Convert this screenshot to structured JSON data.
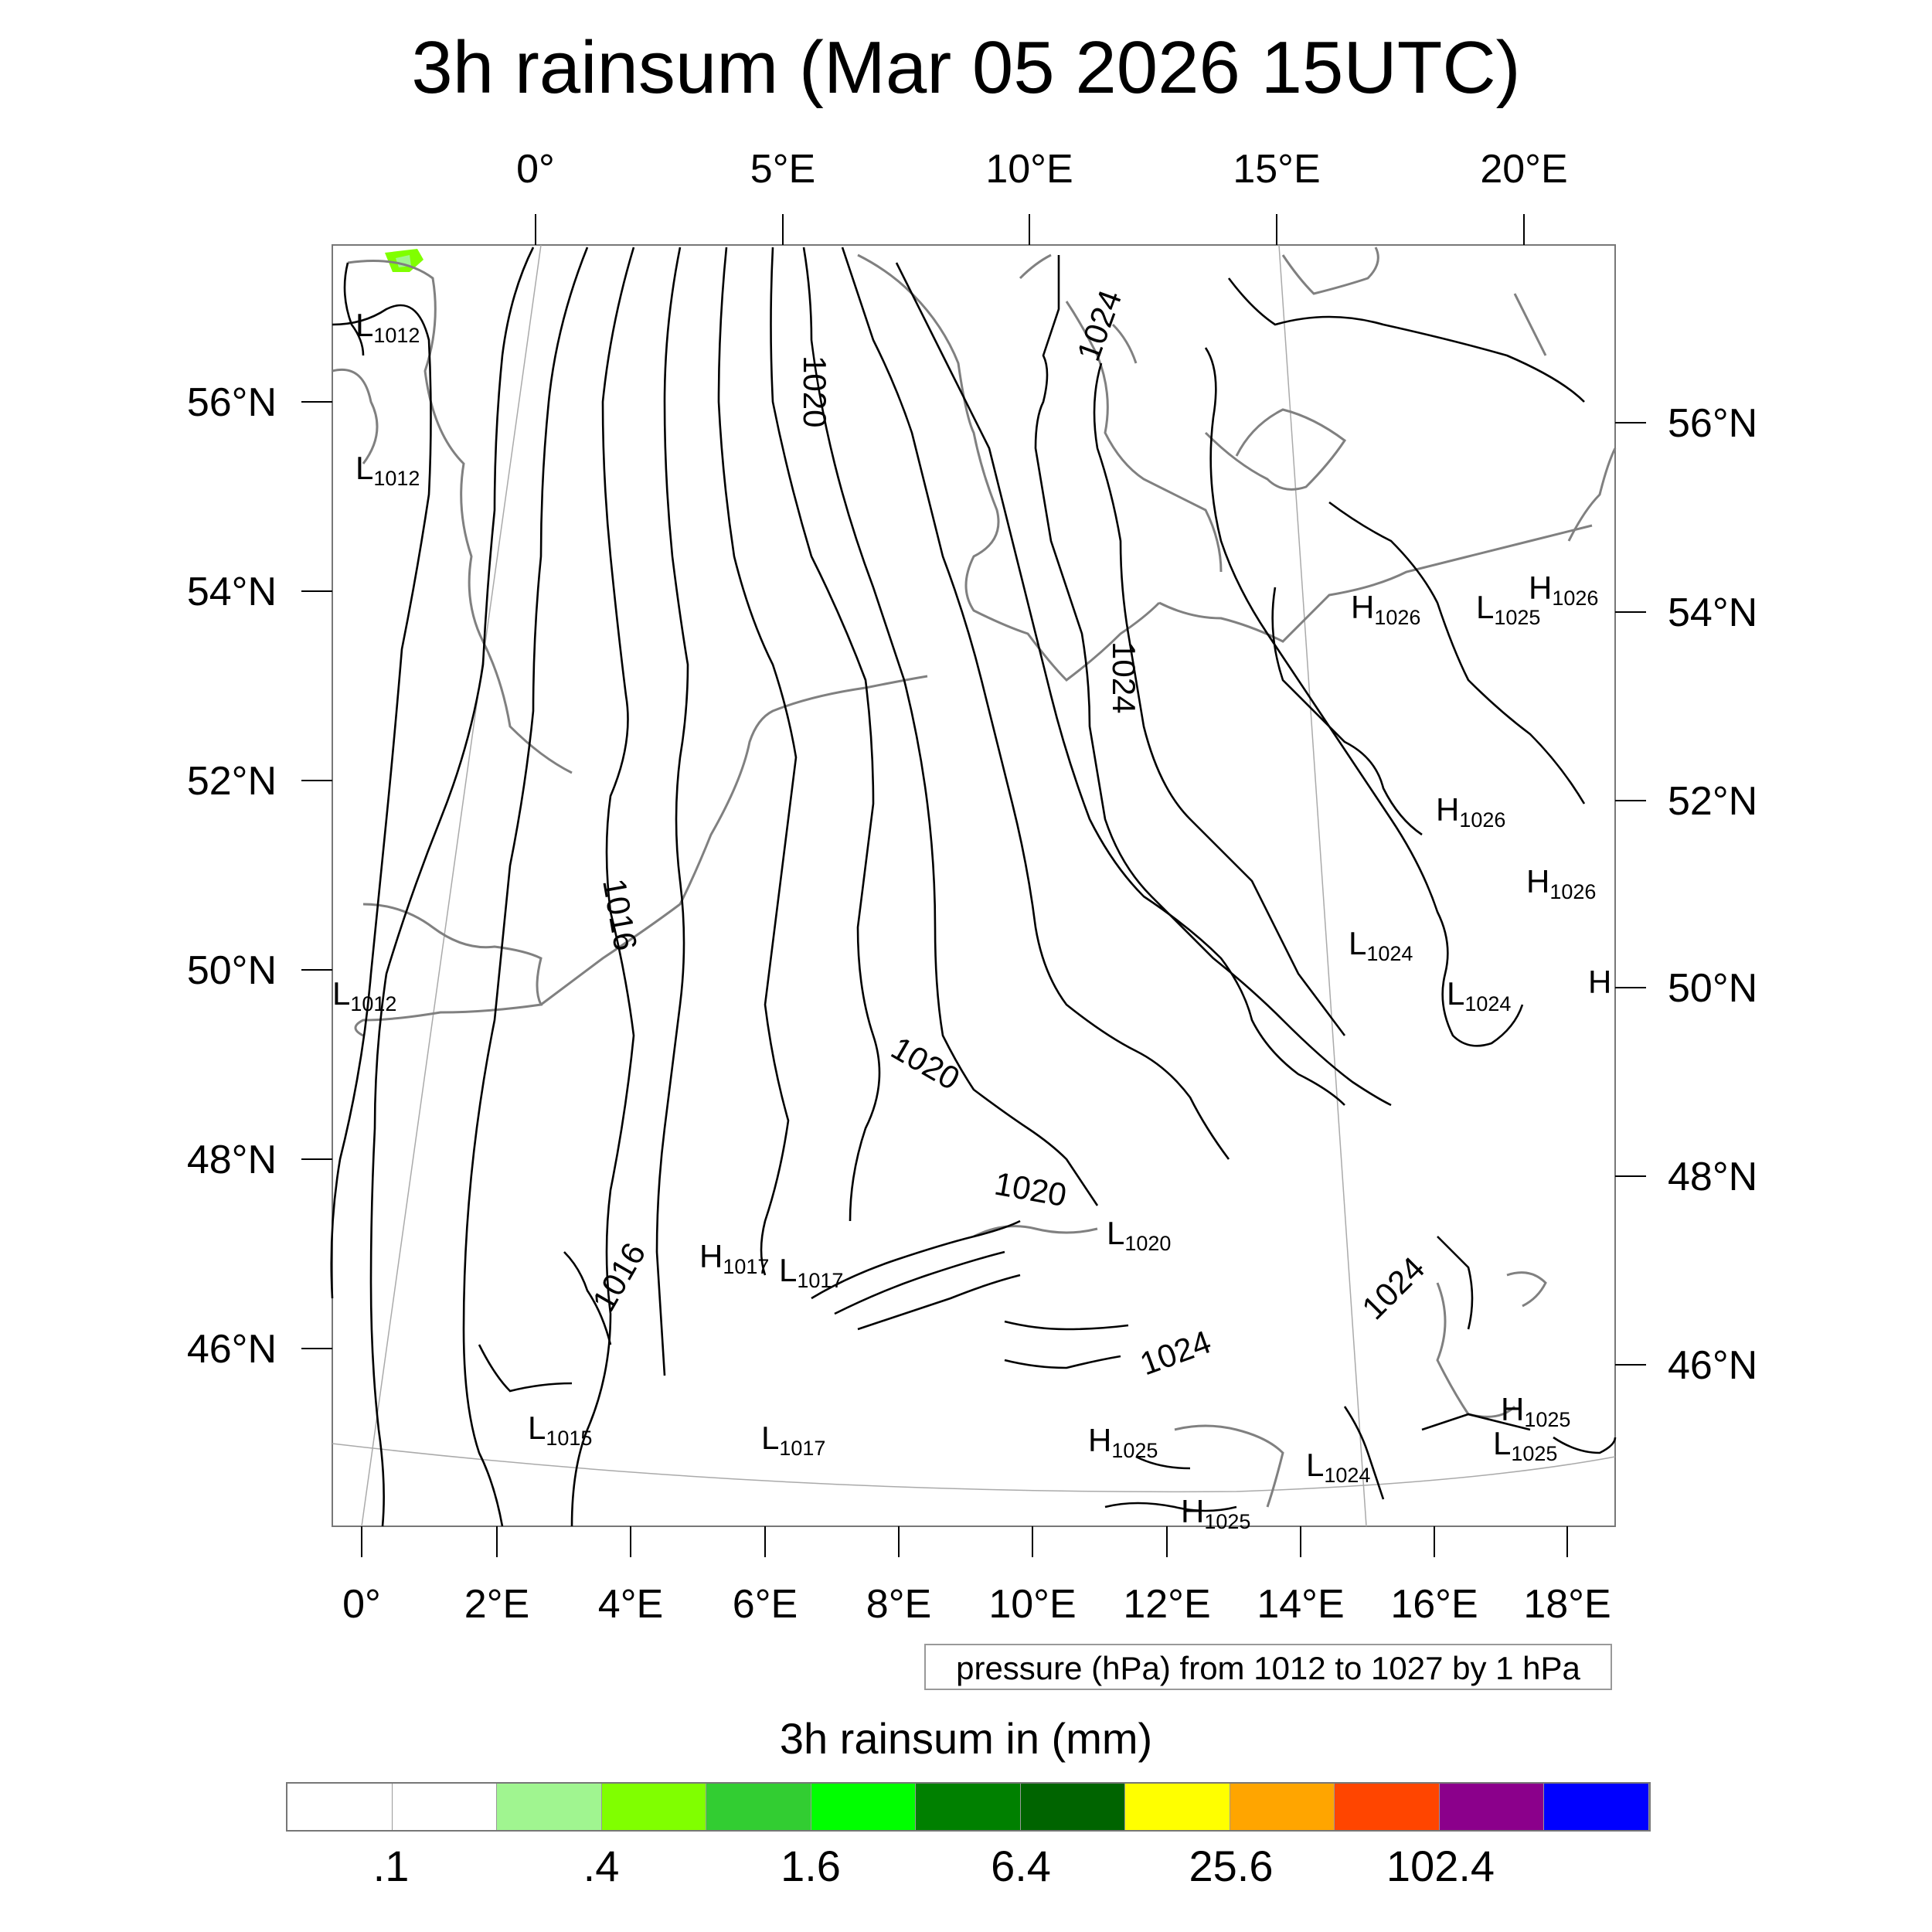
{
  "title": "3h rainsum (Mar 05 2026 15UTC)",
  "top_lon_labels": [
    "0°",
    "5°E",
    "10°E",
    "15°E",
    "20°E"
  ],
  "bottom_lon_labels": [
    "0°",
    "2°E",
    "4°E",
    "6°E",
    "8°E",
    "10°E",
    "12°E",
    "14°E",
    "16°E",
    "18°E"
  ],
  "left_lat_labels": [
    "56°N",
    "54°N",
    "52°N",
    "50°N",
    "48°N",
    "46°N"
  ],
  "right_lat_labels": [
    "56°N",
    "54°N",
    "52°N",
    "50°N",
    "48°N",
    "46°N"
  ],
  "contour_labels": [
    "1020",
    "1024",
    "1024",
    "1016",
    "1020",
    "1020",
    "1016",
    "1024",
    "1024"
  ],
  "pressure_centers": [
    {
      "type": "L",
      "value": "1012"
    },
    {
      "type": "L",
      "value": "1012"
    },
    {
      "type": "L",
      "value": "1012"
    },
    {
      "type": "H",
      "value": "1026"
    },
    {
      "type": "L",
      "value": "1025"
    },
    {
      "type": "H",
      "value": "1026"
    },
    {
      "type": "H",
      "value": "1026"
    },
    {
      "type": "H",
      "value": "1026"
    },
    {
      "type": "L",
      "value": "1024"
    },
    {
      "type": "L",
      "value": "1024"
    },
    {
      "type": "H",
      "value": ""
    },
    {
      "type": "L",
      "value": "1020"
    },
    {
      "type": "H",
      "value": "1017"
    },
    {
      "type": "L",
      "value": "1017"
    },
    {
      "type": "L",
      "value": "1015"
    },
    {
      "type": "L",
      "value": "1017"
    },
    {
      "type": "H",
      "value": "1025"
    },
    {
      "type": "L",
      "value": "1024"
    },
    {
      "type": "H",
      "value": "1025"
    },
    {
      "type": "L",
      "value": "1025"
    },
    {
      "type": "H",
      "value": "1025"
    }
  ],
  "info_box": "pressure (hPa) from 1012 to 1027 by 1 hPa",
  "colorbar": {
    "title": "3h rainsum in (mm)",
    "colors": [
      "#ffffff",
      "#ffffff",
      "#a0f590",
      "#80ff00",
      "#32cd32",
      "#00ff00",
      "#008000",
      "#006400",
      "#ffff00",
      "#ffa500",
      "#ff4500",
      "#8b008b",
      "#0000ff"
    ],
    "labels": [
      ".1",
      ".4",
      "1.6",
      "6.4",
      "25.6",
      "102.4"
    ]
  },
  "colors": {
    "contour": "#000000",
    "coastline": "#808080",
    "rain_patch": "#80ff00"
  }
}
